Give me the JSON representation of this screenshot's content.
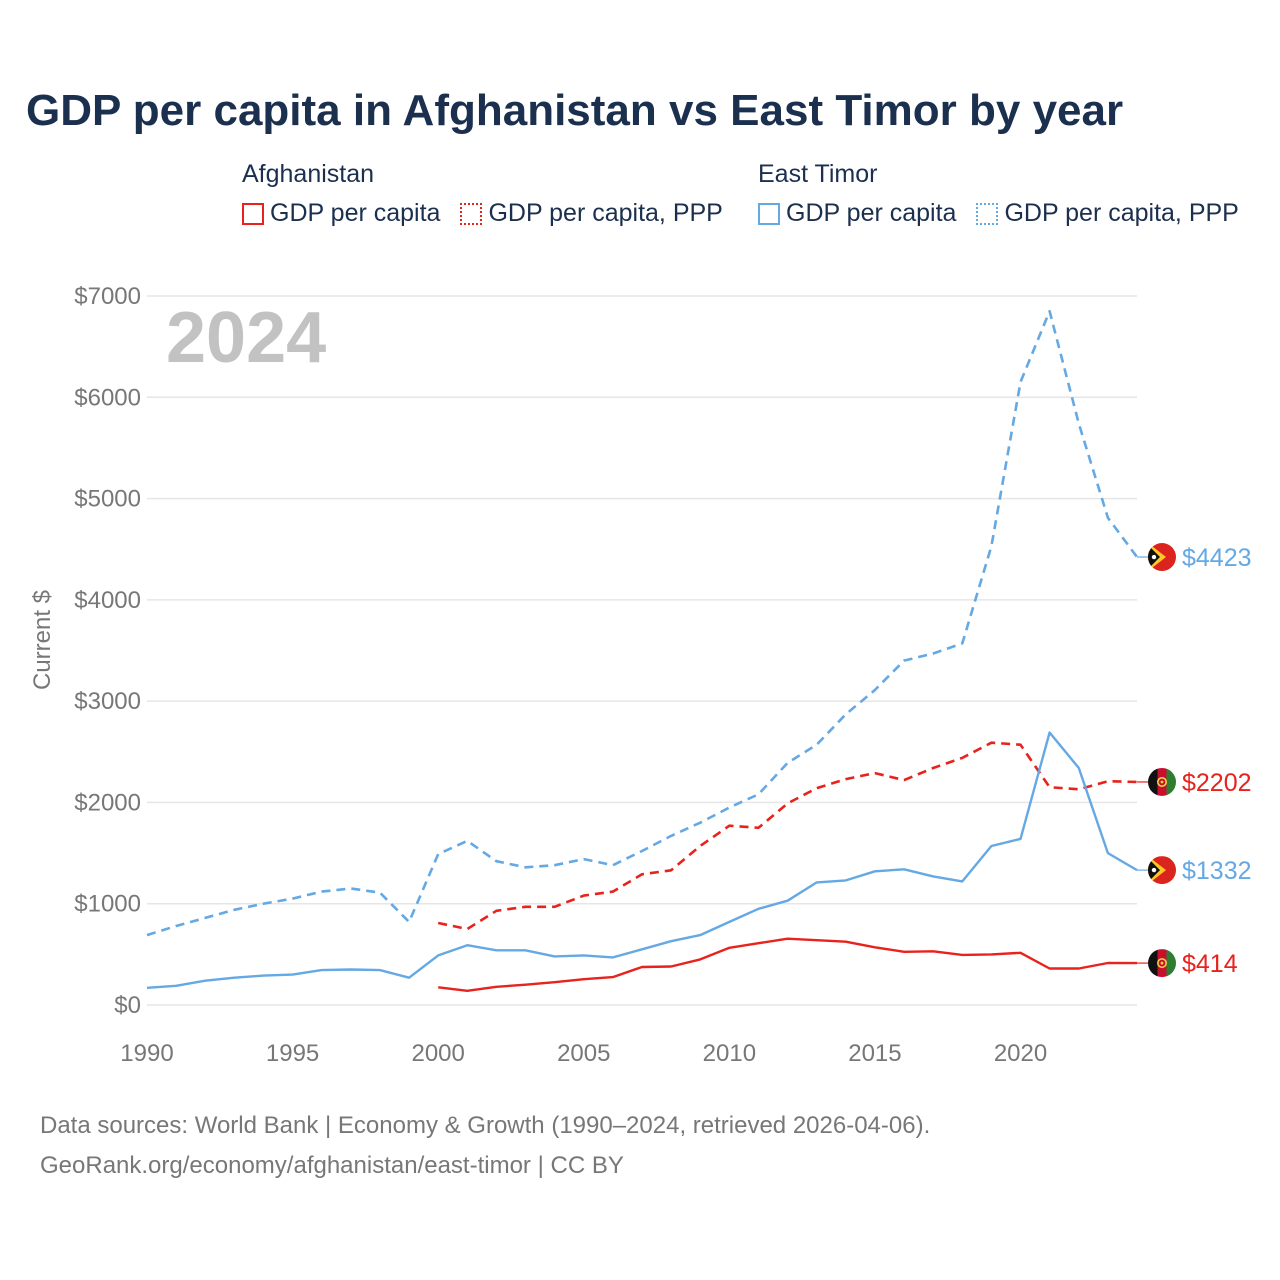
{
  "title": "GDP per capita in Afghanistan vs East Timor by year",
  "legend": [
    {
      "country": "Afghanistan",
      "items": [
        {
          "label": "GDP per capita",
          "color": "#e8221c",
          "style": "solid"
        },
        {
          "label": "GDP per capita, PPP",
          "color": "#e8221c",
          "style": "dotted"
        }
      ]
    },
    {
      "country": "East Timor",
      "items": [
        {
          "label": "GDP per capita",
          "color": "#64a8e4",
          "style": "solid"
        },
        {
          "label": "GDP per capita, PPP",
          "color": "#64a8e4",
          "style": "dotted"
        }
      ]
    }
  ],
  "chart_data": {
    "type": "line",
    "year_label": "2024",
    "ylabel": "Current $",
    "xlim": [
      1990,
      2024
    ],
    "ylim": [
      0,
      7000
    ],
    "y_ticks": [
      0,
      1000,
      2000,
      3000,
      4000,
      5000,
      6000,
      7000
    ],
    "y_tick_labels": [
      "$0",
      "$1000",
      "$2000",
      "$3000",
      "$4000",
      "$5000",
      "$6000",
      "$7000"
    ],
    "x_ticks": [
      1990,
      1995,
      2000,
      2005,
      2010,
      2015,
      2020
    ],
    "x_tick_labels": [
      "1990",
      "1995",
      "2000",
      "2005",
      "2010",
      "2015",
      "2020"
    ],
    "series": [
      {
        "name": "East Timor GDP per capita, PPP",
        "country": "East Timor",
        "color": "#64a8e4",
        "dash": true,
        "end_label": "$4423",
        "x": [
          1990,
          1991,
          1992,
          1993,
          1994,
          1995,
          1996,
          1997,
          1998,
          1999,
          2000,
          2001,
          2002,
          2003,
          2004,
          2005,
          2006,
          2007,
          2008,
          2009,
          2010,
          2011,
          2012,
          2013,
          2014,
          2015,
          2016,
          2017,
          2018,
          2019,
          2020,
          2021,
          2022,
          2023,
          2024
        ],
        "y": [
          690,
          780,
          860,
          940,
          1000,
          1050,
          1120,
          1150,
          1110,
          820,
          1490,
          1620,
          1420,
          1360,
          1380,
          1440,
          1380,
          1520,
          1670,
          1800,
          1950,
          2080,
          2390,
          2570,
          2870,
          3110,
          3400,
          3470,
          3570,
          4530,
          6150,
          6850,
          5740,
          4810,
          4423
        ]
      },
      {
        "name": "Afghanistan GDP per capita, PPP",
        "country": "Afghanistan",
        "color": "#e8221c",
        "dash": true,
        "end_label": "$2202",
        "x": [
          2000,
          2001,
          2002,
          2003,
          2004,
          2005,
          2006,
          2007,
          2008,
          2009,
          2010,
          2011,
          2012,
          2013,
          2014,
          2015,
          2016,
          2017,
          2018,
          2019,
          2020,
          2021,
          2022,
          2023,
          2024
        ],
        "y": [
          810,
          750,
          930,
          970,
          970,
          1080,
          1120,
          1290,
          1330,
          1570,
          1770,
          1750,
          1990,
          2140,
          2230,
          2290,
          2220,
          2340,
          2440,
          2590,
          2570,
          2150,
          2130,
          2210,
          2202
        ]
      },
      {
        "name": "East Timor GDP per capita",
        "country": "East Timor",
        "color": "#64a8e4",
        "dash": false,
        "end_label": "$1332",
        "x": [
          1990,
          1991,
          1992,
          1993,
          1994,
          1995,
          1996,
          1997,
          1998,
          1999,
          2000,
          2001,
          2002,
          2003,
          2004,
          2005,
          2006,
          2007,
          2008,
          2009,
          2010,
          2011,
          2012,
          2013,
          2014,
          2015,
          2016,
          2017,
          2018,
          2019,
          2020,
          2021,
          2022,
          2023,
          2024
        ],
        "y": [
          170,
          190,
          240,
          270,
          290,
          300,
          345,
          350,
          345,
          270,
          490,
          590,
          540,
          540,
          480,
          490,
          470,
          550,
          630,
          690,
          820,
          950,
          1030,
          1210,
          1230,
          1320,
          1340,
          1270,
          1220,
          1570,
          1640,
          2690,
          2340,
          1500,
          1332
        ]
      },
      {
        "name": "Afghanistan GDP per capita",
        "country": "Afghanistan",
        "color": "#e8221c",
        "dash": false,
        "end_label": "$414",
        "x": [
          2000,
          2001,
          2002,
          2003,
          2004,
          2005,
          2006,
          2007,
          2008,
          2009,
          2010,
          2011,
          2012,
          2013,
          2014,
          2015,
          2016,
          2017,
          2018,
          2019,
          2020,
          2021,
          2022,
          2023,
          2024
        ],
        "y": [
          175,
          140,
          180,
          200,
          225,
          255,
          275,
          375,
          380,
          450,
          565,
          610,
          655,
          640,
          625,
          570,
          525,
          530,
          495,
          500,
          515,
          360,
          360,
          415,
          414
        ]
      }
    ]
  },
  "footer": {
    "line1": "Data sources: World Bank | Economy & Growth (1990–2024, retrieved 2026-04-06).",
    "line2": "GeoRank.org/economy/afghanistan/east-timor | CC BY"
  }
}
